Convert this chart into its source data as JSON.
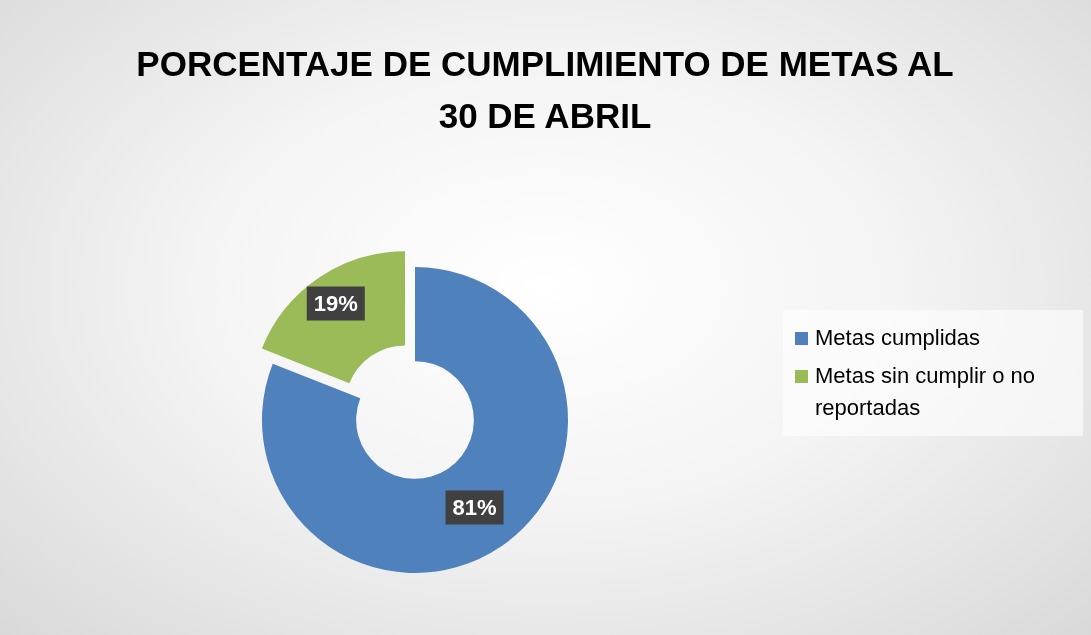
{
  "chart_data": {
    "type": "donut",
    "title": "PORCENTAJE DE CUMPLIMIENTO DE METAS AL 30 DE ABRIL",
    "categories": [
      "Metas cumplidas",
      "Metas sin cumplir o no reportadas"
    ],
    "values": [
      81,
      19
    ],
    "colors": [
      "#4f81bd",
      "#9bbb59"
    ],
    "value_labels": [
      "81%",
      "19%"
    ],
    "legend": "right"
  }
}
